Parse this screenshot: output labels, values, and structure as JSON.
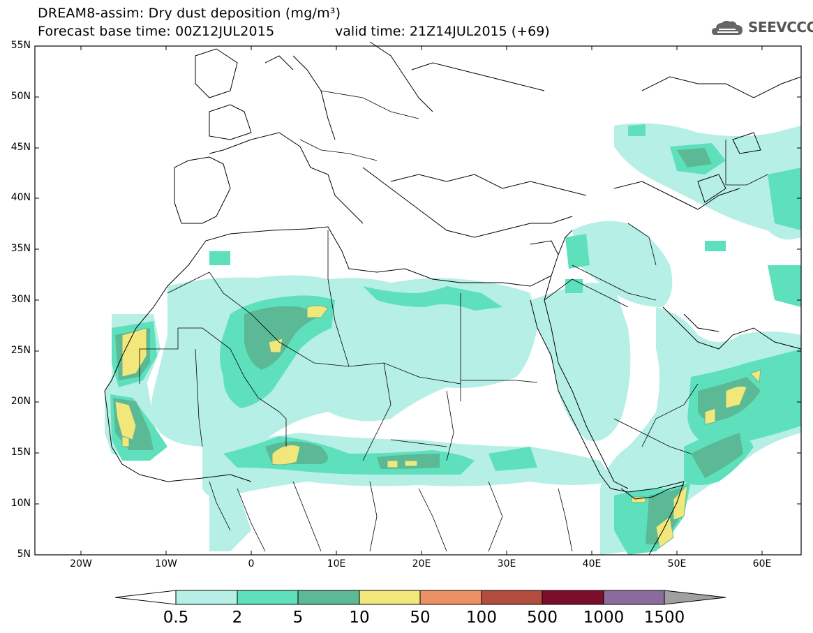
{
  "header": {
    "title": "DREAM8-assim: Dry dust deposition (mg/m³)",
    "base_time": "Forecast base time: 00Z12JUL2015",
    "valid_time": "valid time: 21Z14JUL2015 (+69)",
    "logo_text": "SEEVCCC",
    "logo_icon": "cloud-icon"
  },
  "map": {
    "lat_labels": [
      "55N",
      "50N",
      "45N",
      "40N",
      "35N",
      "30N",
      "25N",
      "20N",
      "15N",
      "10N",
      "5N"
    ],
    "lon_labels": [
      "20W",
      "10W",
      "0",
      "10E",
      "20E",
      "30E",
      "40E",
      "50E",
      "60E"
    ],
    "lat_range": [
      5,
      55
    ],
    "lon_range": [
      -25,
      65
    ]
  },
  "legend": {
    "labels": [
      "0.5",
      "2",
      "5",
      "10",
      "50",
      "100",
      "500",
      "1000",
      "1500"
    ],
    "colors": [
      "#ffffff",
      "#b6efe6",
      "#5ee0bd",
      "#5bb995",
      "#f2e77a",
      "#ec9065",
      "#b14c3e",
      "#7a0e2b",
      "#8b6b9c",
      "#a0a0a0"
    ]
  }
}
